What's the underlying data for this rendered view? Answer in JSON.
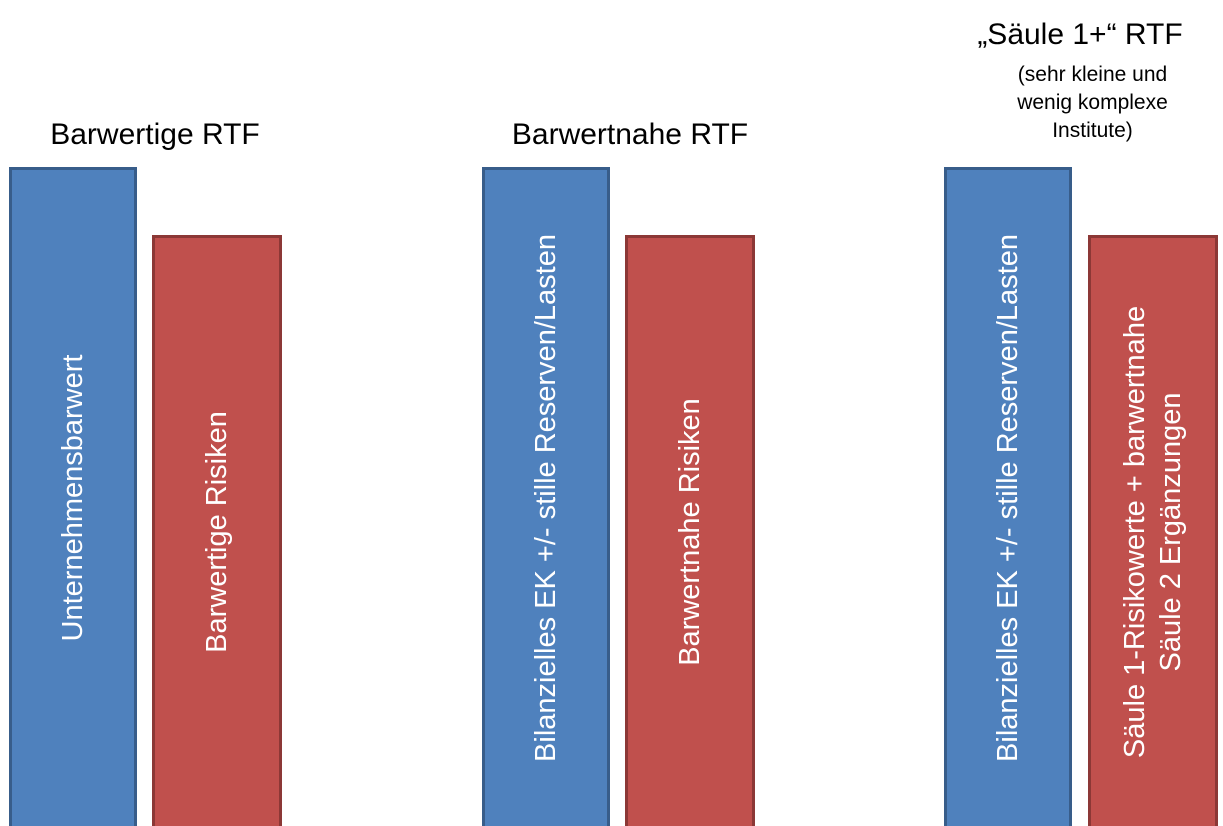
{
  "columns": [
    {
      "heading": "Barwertige RTF",
      "subheading": "",
      "capital_bar": {
        "lines": [
          "Unternehmensbarwert"
        ],
        "color": "#4f81bd"
      },
      "risk_bar": {
        "lines": [
          "Barwertige Risiken"
        ],
        "color": "#c0504d"
      }
    },
    {
      "heading": "Barwertnahe RTF",
      "subheading": "",
      "capital_bar": {
        "lines": [
          "Bilanzielles EK +/- stille Reserven/Lasten"
        ],
        "color": "#4f81bd"
      },
      "risk_bar": {
        "lines": [
          "Barwertnahe Risiken"
        ],
        "color": "#c0504d"
      }
    },
    {
      "heading": "„Säule 1+“ RTF",
      "subheading": "(sehr kleine und wenig komplexe Institute)",
      "capital_bar": {
        "lines": [
          "Bilanzielles EK +/- stille Reserven/Lasten"
        ],
        "color": "#4f81bd"
      },
      "risk_bar": {
        "lines": [
          "Säule 1-Risikowerte + barwertnahe",
          "Säule 2 Ergänzungen"
        ],
        "color": "#c0504d"
      }
    }
  ]
}
